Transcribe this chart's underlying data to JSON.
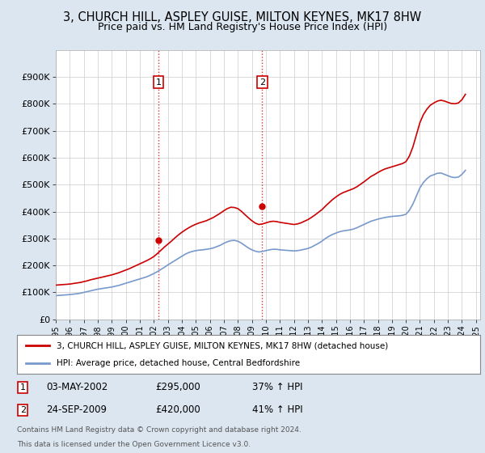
{
  "title": "3, CHURCH HILL, ASPLEY GUISE, MILTON KEYNES, MK17 8HW",
  "subtitle": "Price paid vs. HM Land Registry's House Price Index (HPI)",
  "title_fontsize": 10.5,
  "subtitle_fontsize": 9,
  "xlim": [
    1995,
    2025.3
  ],
  "ylim": [
    0,
    1000000
  ],
  "yticks": [
    0,
    100000,
    200000,
    300000,
    400000,
    500000,
    600000,
    700000,
    800000,
    900000
  ],
  "ytick_labels": [
    "£0",
    "£100K",
    "£200K",
    "£300K",
    "£400K",
    "£500K",
    "£600K",
    "£700K",
    "£800K",
    "£900K"
  ],
  "sale1": {
    "date": "03-MAY-2002",
    "year": 2002.34,
    "price": 295000,
    "label": "1"
  },
  "sale2": {
    "date": "24-SEP-2009",
    "year": 2009.73,
    "price": 420000,
    "label": "2"
  },
  "legend_line1": "3, CHURCH HILL, ASPLEY GUISE, MILTON KEYNES, MK17 8HW (detached house)",
  "legend_line2": "HPI: Average price, detached house, Central Bedfordshire",
  "footer1": "Contains HM Land Registry data © Crown copyright and database right 2024.",
  "footer2": "This data is licensed under the Open Government Licence v3.0.",
  "red_color": "#cc0000",
  "blue_color": "#7799cc",
  "bg_color": "#dce6f0",
  "plot_bg": "#ffffff",
  "grid_color": "#cccccc",
  "hpi_years": [
    1995.0,
    1995.25,
    1995.5,
    1995.75,
    1996.0,
    1996.25,
    1996.5,
    1996.75,
    1997.0,
    1997.25,
    1997.5,
    1997.75,
    1998.0,
    1998.25,
    1998.5,
    1998.75,
    1999.0,
    1999.25,
    1999.5,
    1999.75,
    2000.0,
    2000.25,
    2000.5,
    2000.75,
    2001.0,
    2001.25,
    2001.5,
    2001.75,
    2002.0,
    2002.25,
    2002.5,
    2002.75,
    2003.0,
    2003.25,
    2003.5,
    2003.75,
    2004.0,
    2004.25,
    2004.5,
    2004.75,
    2005.0,
    2005.25,
    2005.5,
    2005.75,
    2006.0,
    2006.25,
    2006.5,
    2006.75,
    2007.0,
    2007.25,
    2007.5,
    2007.75,
    2008.0,
    2008.25,
    2008.5,
    2008.75,
    2009.0,
    2009.25,
    2009.5,
    2009.75,
    2010.0,
    2010.25,
    2010.5,
    2010.75,
    2011.0,
    2011.25,
    2011.5,
    2011.75,
    2012.0,
    2012.25,
    2012.5,
    2012.75,
    2013.0,
    2013.25,
    2013.5,
    2013.75,
    2014.0,
    2014.25,
    2014.5,
    2014.75,
    2015.0,
    2015.25,
    2015.5,
    2015.75,
    2016.0,
    2016.25,
    2016.5,
    2016.75,
    2017.0,
    2017.25,
    2017.5,
    2017.75,
    2018.0,
    2018.25,
    2018.5,
    2018.75,
    2019.0,
    2019.25,
    2019.5,
    2019.75,
    2020.0,
    2020.25,
    2020.5,
    2020.75,
    2021.0,
    2021.25,
    2021.5,
    2021.75,
    2022.0,
    2022.25,
    2022.5,
    2022.75,
    2023.0,
    2023.25,
    2023.5,
    2023.75,
    2024.0,
    2024.25
  ],
  "hpi_values": [
    88000,
    89000,
    90000,
    91000,
    92000,
    93500,
    95000,
    97000,
    100000,
    103000,
    106000,
    109000,
    112000,
    114000,
    116000,
    118000,
    120000,
    123000,
    126000,
    130000,
    134000,
    138000,
    142000,
    146000,
    150000,
    154000,
    158000,
    164000,
    170000,
    177000,
    185000,
    193000,
    202000,
    210000,
    218000,
    226000,
    234000,
    242000,
    248000,
    252000,
    255000,
    257000,
    258000,
    260000,
    262000,
    265000,
    270000,
    275000,
    282000,
    288000,
    292000,
    293000,
    290000,
    283000,
    274000,
    265000,
    258000,
    253000,
    250000,
    252000,
    255000,
    258000,
    260000,
    260000,
    258000,
    257000,
    256000,
    255000,
    254000,
    255000,
    257000,
    260000,
    263000,
    268000,
    275000,
    282000,
    290000,
    300000,
    308000,
    315000,
    320000,
    325000,
    328000,
    330000,
    332000,
    335000,
    340000,
    346000,
    352000,
    358000,
    364000,
    368000,
    372000,
    375000,
    378000,
    380000,
    382000,
    383000,
    384000,
    386000,
    390000,
    405000,
    428000,
    458000,
    488000,
    508000,
    522000,
    532000,
    537000,
    542000,
    543000,
    538000,
    533000,
    528000,
    526000,
    528000,
    538000,
    553000
  ],
  "red_years": [
    1995.0,
    1995.25,
    1995.5,
    1995.75,
    1996.0,
    1996.25,
    1996.5,
    1996.75,
    1997.0,
    1997.25,
    1997.5,
    1997.75,
    1998.0,
    1998.25,
    1998.5,
    1998.75,
    1999.0,
    1999.25,
    1999.5,
    1999.75,
    2000.0,
    2000.25,
    2000.5,
    2000.75,
    2001.0,
    2001.25,
    2001.5,
    2001.75,
    2002.0,
    2002.25,
    2002.5,
    2002.75,
    2003.0,
    2003.25,
    2003.5,
    2003.75,
    2004.0,
    2004.25,
    2004.5,
    2004.75,
    2005.0,
    2005.25,
    2005.5,
    2005.75,
    2006.0,
    2006.25,
    2006.5,
    2006.75,
    2007.0,
    2007.25,
    2007.5,
    2007.75,
    2008.0,
    2008.25,
    2008.5,
    2008.75,
    2009.0,
    2009.25,
    2009.5,
    2009.75,
    2010.0,
    2010.25,
    2010.5,
    2010.75,
    2011.0,
    2011.25,
    2011.5,
    2011.75,
    2012.0,
    2012.25,
    2012.5,
    2012.75,
    2013.0,
    2013.25,
    2013.5,
    2013.75,
    2014.0,
    2014.25,
    2014.5,
    2014.75,
    2015.0,
    2015.25,
    2015.5,
    2015.75,
    2016.0,
    2016.25,
    2016.5,
    2016.75,
    2017.0,
    2017.25,
    2017.5,
    2017.75,
    2018.0,
    2018.25,
    2018.5,
    2018.75,
    2019.0,
    2019.25,
    2019.5,
    2019.75,
    2020.0,
    2020.25,
    2020.5,
    2020.75,
    2021.0,
    2021.25,
    2021.5,
    2021.75,
    2022.0,
    2022.25,
    2022.5,
    2022.75,
    2023.0,
    2023.25,
    2023.5,
    2023.75,
    2024.0,
    2024.25
  ],
  "red_values": [
    127000,
    128000,
    129000,
    130000,
    131000,
    133000,
    135000,
    137000,
    140000,
    143000,
    147000,
    150000,
    153000,
    156000,
    159000,
    162000,
    165000,
    169000,
    173000,
    178000,
    183000,
    188000,
    194000,
    200000,
    206000,
    212000,
    218000,
    225000,
    233000,
    244000,
    256000,
    268000,
    279000,
    290000,
    302000,
    313000,
    323000,
    332000,
    340000,
    347000,
    353000,
    358000,
    362000,
    366000,
    372000,
    378000,
    386000,
    394000,
    403000,
    411000,
    416000,
    415000,
    411000,
    401000,
    389000,
    377000,
    366000,
    357000,
    352000,
    354000,
    358000,
    362000,
    364000,
    363000,
    360000,
    358000,
    356000,
    354000,
    352000,
    354000,
    358000,
    364000,
    370000,
    378000,
    387000,
    397000,
    407000,
    420000,
    432000,
    444000,
    454000,
    463000,
    470000,
    475000,
    480000,
    485000,
    492000,
    501000,
    510000,
    520000,
    530000,
    537000,
    545000,
    552000,
    558000,
    562000,
    566000,
    570000,
    574000,
    578000,
    585000,
    606000,
    640000,
    685000,
    730000,
    760000,
    780000,
    795000,
    803000,
    810000,
    813000,
    810000,
    805000,
    801000,
    800000,
    803000,
    815000,
    835000
  ]
}
